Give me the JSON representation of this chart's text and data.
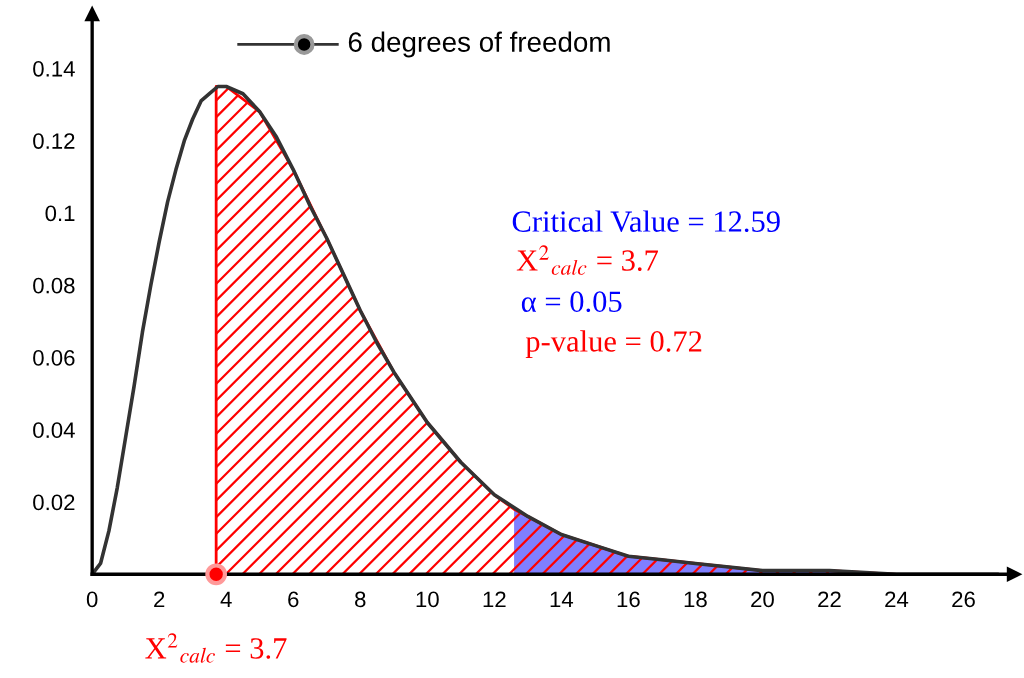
{
  "chart_data": {
    "type": "line",
    "series": [
      {
        "type": "area",
        "color": "#7f7fff",
        "x": [
          12.59,
          13,
          14,
          15,
          16,
          18,
          20,
          22,
          24,
          26,
          27
        ],
        "values": [
          0.018,
          0.016,
          0.011,
          0.008,
          0.005,
          0.003,
          0.001,
          0.001,
          0,
          0,
          0
        ]
      },
      {
        "type": "area",
        "color": "#ff0000",
        "x": [
          3.7,
          4,
          5,
          6,
          7,
          8,
          9,
          10,
          11,
          12,
          12.59,
          13,
          14,
          15,
          16,
          18,
          20,
          22,
          24,
          26,
          27
        ],
        "values": [
          0.135,
          0.135,
          0.128,
          0.112,
          0.093,
          0.073,
          0.056,
          0.042,
          0.031,
          0.022,
          0.018,
          0.016,
          0.011,
          0.008,
          0.005,
          0.003,
          0.001,
          0.001,
          0,
          0,
          0
        ]
      },
      {
        "color": "#333333",
        "x": [
          0,
          0.25,
          0.5,
          0.75,
          1,
          1.25,
          1.5,
          1.75,
          2,
          2.25,
          2.5,
          2.75,
          3,
          3.25,
          3.5,
          3.75,
          4,
          4.5,
          5,
          5.5,
          6,
          6.5,
          7,
          7.5,
          8,
          8.5,
          9,
          9.5,
          10,
          11,
          12,
          13,
          14,
          15,
          16,
          17,
          18,
          19,
          20,
          22,
          24,
          26,
          27
        ],
        "values": [
          0,
          0.003,
          0.012,
          0.024,
          0.038,
          0.052,
          0.067,
          0.08,
          0.092,
          0.103,
          0.112,
          0.12,
          0.126,
          0.131,
          0.133,
          0.135,
          0.135,
          0.133,
          0.128,
          0.121,
          0.112,
          0.102,
          0.093,
          0.083,
          0.073,
          0.064,
          0.056,
          0.049,
          0.042,
          0.031,
          0.022,
          0.016,
          0.011,
          0.008,
          0.005,
          0.004,
          0.003,
          0.002,
          0.001,
          0.001,
          0,
          0,
          0
        ]
      },
      {
        "type": "scatter",
        "color": "#ff0000",
        "marker": "circle",
        "x": [
          3.7
        ],
        "values": [
          0
        ]
      }
    ],
    "annotations": [
      "6 degrees of freedom",
      "Critical Value = 12.59",
      "X$^{2}$$_{calc}$ = 3.7",
      "α = 0.05",
      "p-value = 0.72",
      {
        "text": "X$^{2}$$_{calc}$ = 3.7",
        "x": 3.7,
        "y": 0
      }
    ],
    "xlim": [
      0,
      27.5
    ],
    "ylim": [
      0,
      0.155
    ],
    "xticks": [
      0,
      2,
      4,
      6,
      8,
      10,
      12,
      14,
      16,
      18,
      20,
      22,
      24,
      26
    ],
    "yticks": [
      0.02,
      0.04,
      0.06,
      0.08,
      0.1,
      0.12,
      0.14
    ],
    "grid": false,
    "legend": false
  }
}
